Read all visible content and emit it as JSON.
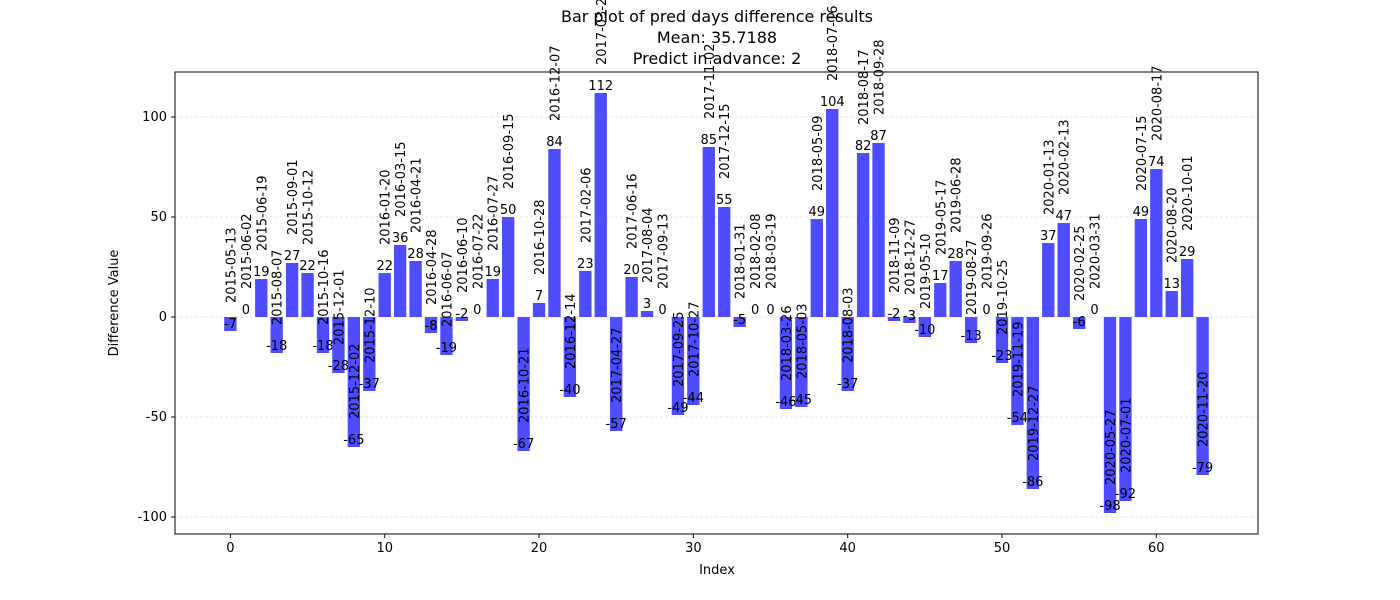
{
  "chart_data": {
    "type": "bar",
    "title": "Bar plot of pred days difference results",
    "subtitle": [
      "Mean: 35.7188",
      "Predict in advance: 2"
    ],
    "x_label": "Index",
    "y_label": "Difference Value",
    "x": [
      0,
      1,
      2,
      3,
      4,
      5,
      6,
      7,
      8,
      9,
      10,
      11,
      12,
      13,
      14,
      15,
      16,
      17,
      18,
      19,
      20,
      21,
      22,
      23,
      24,
      25,
      26,
      27,
      28,
      29,
      30,
      31,
      32,
      33,
      34,
      35,
      36,
      37,
      38,
      39,
      40,
      41,
      42,
      43,
      44,
      45,
      46,
      47,
      48,
      49,
      50,
      51,
      52,
      53,
      54,
      55,
      56,
      57,
      58,
      59,
      60,
      61,
      62,
      63
    ],
    "values": [
      -7,
      0,
      19,
      -18,
      27,
      22,
      -18,
      -28,
      -65,
      -37,
      22,
      36,
      28,
      -8,
      -19,
      -2,
      0,
      19,
      50,
      -67,
      7,
      84,
      -40,
      23,
      112,
      -57,
      20,
      3,
      0,
      -49,
      -44,
      85,
      55,
      -5,
      0,
      0,
      -46,
      -45,
      49,
      104,
      -37,
      82,
      87,
      -2,
      -3,
      -10,
      17,
      28,
      -13,
      0,
      -23,
      -54,
      -86,
      37,
      47,
      -6,
      0,
      -98,
      -92,
      49,
      74,
      13,
      29,
      -79
    ],
    "annotations": [
      "2015-05-13",
      "2015-06-02",
      "2015-06-19",
      "2015-08-07",
      "2015-09-01",
      "2015-10-12",
      "2015-10-16",
      "2015-12-01",
      "2015-12-02",
      "2015-12-10",
      "2016-01-20",
      "2016-03-15",
      "2016-04-21",
      "2016-04-28",
      "2016-06-07",
      "2016-06-10",
      "2016-07-22",
      "2016-07-27",
      "2016-09-15",
      "2016-10-21",
      "2016-10-28",
      "2016-12-07",
      "2016-12-14",
      "2017-02-06",
      "2017-03-29",
      "2017-04-27",
      "2017-06-16",
      "2017-08-04",
      "2017-09-13",
      "2017-09-25",
      "2017-10-27",
      "2017-11-02",
      "2017-12-15",
      "2018-01-31",
      "2018-02-08",
      "2018-03-19",
      "2018-03-26",
      "2018-05-03",
      "2018-05-09",
      "2018-07-16",
      "2018-08-03",
      "2018-08-17",
      "2018-09-28",
      "2018-11-09",
      "2018-12-27",
      "2019-05-10",
      "2019-05-17",
      "2019-06-28",
      "2019-08-27",
      "2019-09-26",
      "2019-10-25",
      "2019-11-19",
      "2019-12-27",
      "2020-01-13",
      "2020-02-13",
      "2020-02-25",
      "2020-03-31",
      "2020-05-27",
      "2020-07-01",
      "2020-07-15",
      "2020-08-17",
      "2020-08-20",
      "2020-10-01",
      "2020-11-20"
    ],
    "color": "#4d4dff",
    "xlim": [
      -3.59,
      66.59
    ],
    "xticks": [
      0,
      10,
      20,
      30,
      40,
      50,
      60
    ],
    "ylim": [
      -108.5,
      122.5
    ],
    "yticks": [
      -100,
      -50,
      0,
      50,
      100
    ],
    "grid": true
  }
}
